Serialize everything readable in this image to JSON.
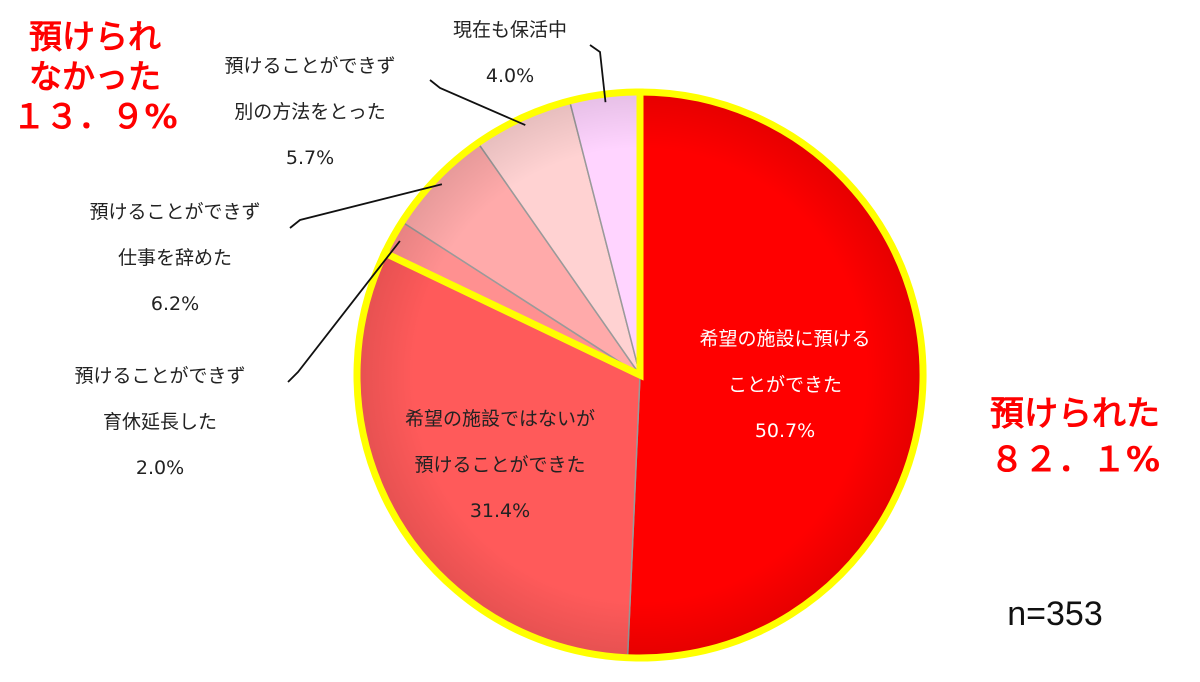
{
  "chart_data": {
    "type": "pie",
    "sample_size_label": "n=353",
    "slices": [
      {
        "label_lines": [
          "希望の施設に預ける",
          "ことができた"
        ],
        "value_label": "50.7%",
        "value": 50.7,
        "color": "#ff0000",
        "text_color": "#ffffff"
      },
      {
        "label_lines": [
          "希望の施設ではないが",
          "預けることができた"
        ],
        "value_label": "31.4%",
        "value": 31.4,
        "color": "#ff5a5a",
        "text_color": "#222222"
      },
      {
        "label_lines": [
          "預けることができず",
          "育休延長した"
        ],
        "value_label": "2.0%",
        "value": 2.0,
        "color": "#ff9090",
        "text_color": "#222222"
      },
      {
        "label_lines": [
          "預けることができず",
          "仕事を辞めた"
        ],
        "value_label": "6.2%",
        "value": 6.2,
        "color": "#ffaaaa",
        "text_color": "#222222"
      },
      {
        "label_lines": [
          "預けることができず",
          "別の方法をとった"
        ],
        "value_label": "5.7%",
        "value": 5.7,
        "color": "#ffd2d2",
        "text_color": "#222222"
      },
      {
        "label_lines": [
          "現在も保活中"
        ],
        "value_label": "4.0%",
        "value": 4.0,
        "color": "#ffd4ff",
        "text_color": "#222222"
      }
    ],
    "groups": [
      {
        "title_lines": [
          "預けられた",
          "８２．１%"
        ],
        "value": 82.1,
        "color": "#ff0000"
      },
      {
        "title_lines": [
          "預けられ",
          "なかった",
          "１３．９%"
        ],
        "value": 13.9,
        "color": "#ff0000"
      }
    ],
    "group_outline_color": "#ffff00"
  }
}
